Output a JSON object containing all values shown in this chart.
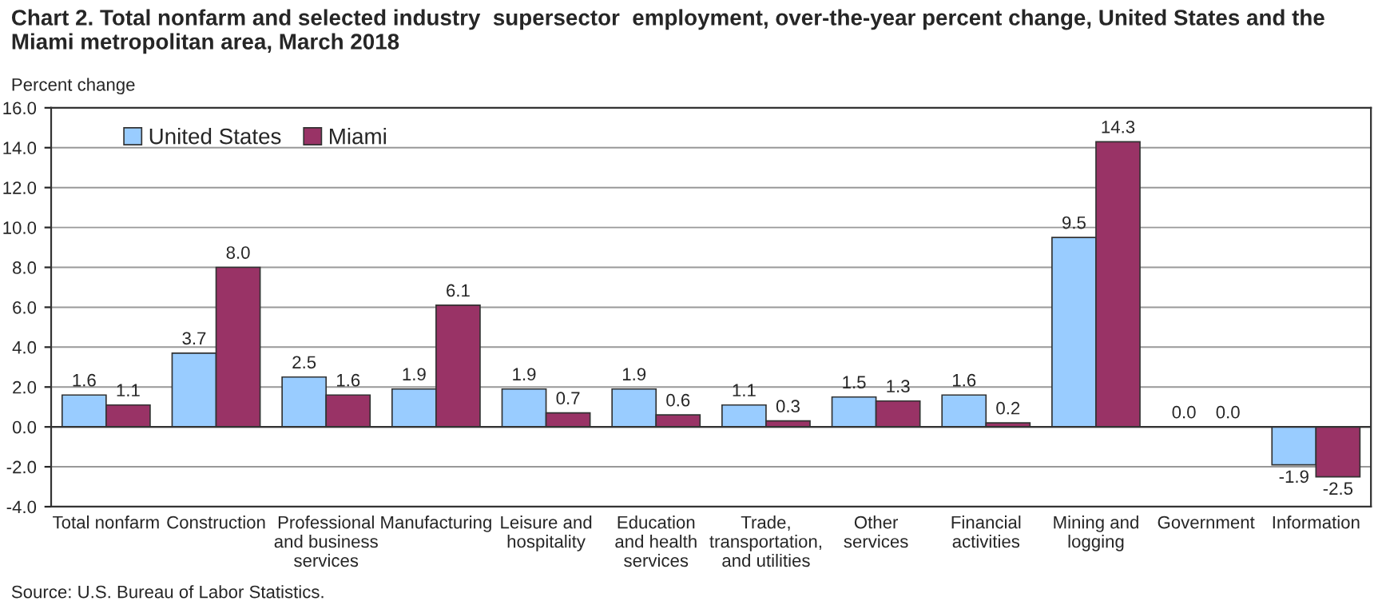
{
  "chart_data": {
    "type": "bar",
    "title": "Chart 2. Total nonfarm and selected industry  supersector  employment, over-the-year percent change, United States and the Miami metropolitan area, March 2018",
    "ylabel": "Percent change",
    "categories": [
      "Total nonfarm",
      "Construction",
      "Professional\nand business\nservices",
      "Manufacturing",
      "Leisure and\nhospitality",
      "Education\nand health\nservices",
      "Trade,\ntransportation,\nand utilities",
      "Other\nservices",
      "Financial\nactivities",
      "Mining and\nlogging",
      "Government",
      "Information"
    ],
    "series": [
      {
        "name": "United States",
        "color": "#99ccff",
        "values": [
          1.6,
          3.7,
          2.5,
          1.9,
          1.9,
          1.9,
          1.1,
          1.5,
          1.6,
          9.5,
          0.0,
          -1.9
        ],
        "value_labels": [
          "1.6",
          "3.7",
          "2.5",
          "1.9",
          "1.9",
          "1.9",
          "1.1",
          "1.5",
          "1.6",
          "9.5",
          "0.0",
          "-1.9"
        ]
      },
      {
        "name": "Miami",
        "color": "#993366",
        "values": [
          1.1,
          8.0,
          1.6,
          6.1,
          0.7,
          0.6,
          0.3,
          1.3,
          0.2,
          14.3,
          0.0,
          -2.5
        ],
        "value_labels": [
          "1.1",
          "8.0",
          "1.6",
          "6.1",
          "0.7",
          "0.6",
          "0.3",
          "1.3",
          "0.2",
          "14.3",
          "0.0",
          "-2.5"
        ]
      }
    ],
    "ylim": [
      -4,
      16
    ],
    "yticks": [
      {
        "value": -4,
        "label": "-4.0"
      },
      {
        "value": -2,
        "label": "-2.0"
      },
      {
        "value": 0,
        "label": "0.0"
      },
      {
        "value": 2,
        "label": "2.0"
      },
      {
        "value": 4,
        "label": "4.0"
      },
      {
        "value": 6,
        "label": "6.0"
      },
      {
        "value": 8,
        "label": "8.0"
      },
      {
        "value": 10,
        "label": "10.0"
      },
      {
        "value": 12,
        "label": "12.0"
      },
      {
        "value": 14,
        "label": "14.0"
      },
      {
        "value": 16,
        "label": "16.0"
      }
    ],
    "grid": "y",
    "legend": "top left",
    "annotations": [
      "Source: U.S. Bureau of Labor Statistics."
    ]
  }
}
